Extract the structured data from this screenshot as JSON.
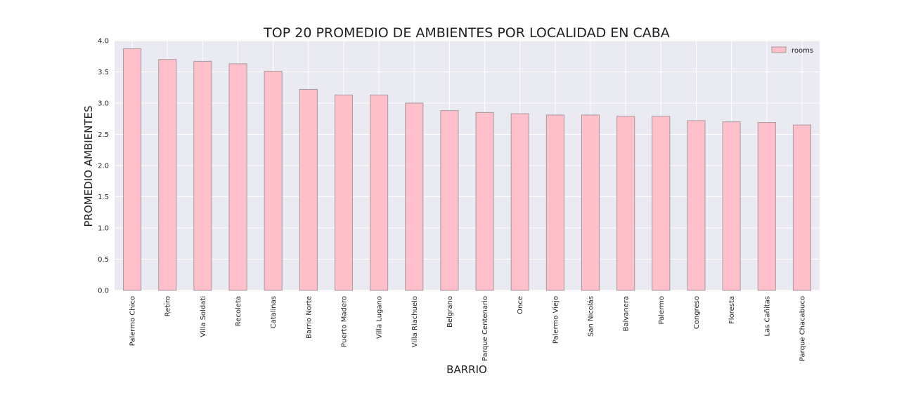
{
  "chart_data": {
    "type": "bar",
    "title": "TOP 20 PROMEDIO DE AMBIENTES POR LOCALIDAD EN CABA",
    "xlabel": "BARRIO",
    "ylabel": "PROMEDIO AMBIENTES",
    "ylim": [
      0,
      4.0
    ],
    "yticks": [
      "0.0",
      "0.5",
      "1.0",
      "1.5",
      "2.0",
      "2.5",
      "3.0",
      "3.5",
      "4.0"
    ],
    "grid": true,
    "legend_position": "top-right",
    "categories": [
      "Palermo Chico",
      "Retiro",
      "Villa Soldati",
      "Recoleta",
      "Catalinas",
      "Barrio Norte",
      "Puerto Madero",
      "Villa Lugano",
      "Villa Riachuelo",
      "Belgrano",
      "Parque Centenario",
      "Once",
      "Palermo Viejo",
      "San Nicolás",
      "Balvanera",
      "Palermo",
      "Congreso",
      "Floresta",
      "Las Cañitas",
      "Parque Chacabuco"
    ],
    "series": [
      {
        "name": "rooms",
        "color": "#ffc0cb",
        "values": [
          3.87,
          3.7,
          3.67,
          3.63,
          3.51,
          3.22,
          3.13,
          3.13,
          3.0,
          2.88,
          2.85,
          2.83,
          2.81,
          2.81,
          2.79,
          2.79,
          2.72,
          2.7,
          2.69,
          2.65
        ]
      }
    ],
    "colors": {
      "plot_background": "#eaeaf2",
      "grid": "#ffffff",
      "bar_edge": "#a69a9c"
    }
  }
}
